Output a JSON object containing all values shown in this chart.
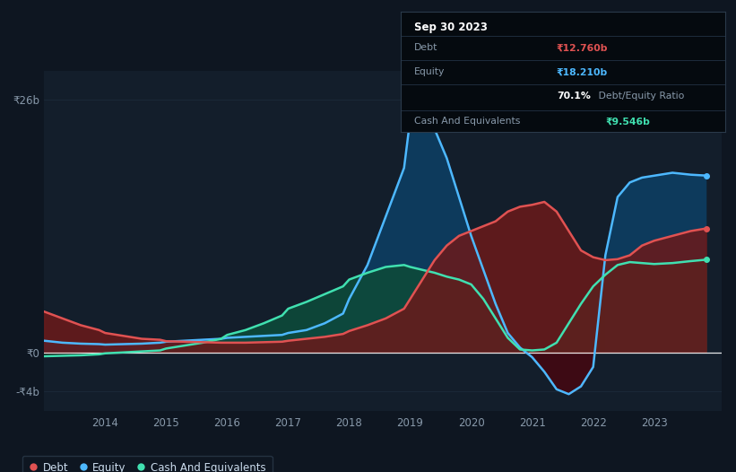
{
  "bg_color": "#0e1621",
  "plot_bg_color": "#131e2b",
  "title": "Sep 30 2023",
  "tooltip": {
    "debt": "₹12.760b",
    "equity": "₹18.210b",
    "ratio": "70.1%",
    "cash": "₹9.546b"
  },
  "ylabel_top": "₹26b",
  "ylabel_zero": "₹0",
  "ylabel_bottom": "-₹4b",
  "x_labels": [
    "2014",
    "2015",
    "2016",
    "2017",
    "2018",
    "2019",
    "2020",
    "2021",
    "2022",
    "2023"
  ],
  "years": [
    2013.0,
    2013.3,
    2013.6,
    2013.9,
    2014.0,
    2014.3,
    2014.6,
    2014.9,
    2015.0,
    2015.3,
    2015.6,
    2015.9,
    2016.0,
    2016.3,
    2016.6,
    2016.9,
    2017.0,
    2017.3,
    2017.6,
    2017.9,
    2018.0,
    2018.3,
    2018.6,
    2018.9,
    2019.0,
    2019.2,
    2019.4,
    2019.6,
    2019.8,
    2020.0,
    2020.2,
    2020.4,
    2020.6,
    2020.8,
    2021.0,
    2021.2,
    2021.4,
    2021.6,
    2021.8,
    2022.0,
    2022.2,
    2022.4,
    2022.6,
    2022.8,
    2023.0,
    2023.3,
    2023.6,
    2023.85
  ],
  "debt": [
    4.2,
    3.5,
    2.8,
    2.3,
    2.0,
    1.7,
    1.4,
    1.3,
    1.15,
    1.1,
    1.05,
    1.0,
    1.0,
    1.0,
    1.05,
    1.1,
    1.2,
    1.4,
    1.6,
    1.9,
    2.2,
    2.8,
    3.5,
    4.5,
    5.5,
    7.5,
    9.5,
    11.0,
    12.0,
    12.5,
    13.0,
    13.5,
    14.5,
    15.0,
    15.2,
    15.5,
    14.5,
    12.5,
    10.5,
    9.8,
    9.5,
    9.6,
    10.0,
    11.0,
    11.5,
    12.0,
    12.5,
    12.76
  ],
  "equity": [
    1.2,
    1.0,
    0.9,
    0.85,
    0.8,
    0.85,
    0.9,
    1.0,
    1.1,
    1.2,
    1.3,
    1.4,
    1.5,
    1.6,
    1.7,
    1.8,
    2.0,
    2.3,
    3.0,
    4.0,
    5.5,
    9.0,
    14.0,
    19.0,
    24.0,
    24.5,
    23.0,
    20.0,
    16.0,
    12.0,
    8.5,
    5.0,
    2.0,
    0.5,
    -0.5,
    -2.0,
    -3.8,
    -4.3,
    -3.5,
    -1.5,
    10.0,
    16.0,
    17.5,
    18.0,
    18.2,
    18.5,
    18.3,
    18.21
  ],
  "cash": [
    -0.4,
    -0.35,
    -0.3,
    -0.2,
    -0.1,
    0.0,
    0.1,
    0.2,
    0.4,
    0.7,
    1.0,
    1.4,
    1.8,
    2.3,
    3.0,
    3.8,
    4.5,
    5.2,
    6.0,
    6.8,
    7.5,
    8.2,
    8.8,
    9.0,
    8.8,
    8.5,
    8.2,
    7.8,
    7.5,
    7.0,
    5.5,
    3.5,
    1.5,
    0.3,
    0.2,
    0.3,
    1.0,
    3.0,
    5.0,
    6.8,
    8.0,
    9.0,
    9.3,
    9.2,
    9.1,
    9.2,
    9.4,
    9.546
  ],
  "debt_color": "#e05252",
  "equity_color": "#4db8ff",
  "cash_color": "#40e0b0",
  "debt_fill_pos": "#6b1a1a",
  "debt_fill_neg": "#3d0808",
  "equity_fill_pos": "#0d3a5c",
  "equity_fill_neg": "#3d0a14",
  "cash_fill_pos": "#0d4a3a",
  "cash_fill_neg": "#081a10",
  "ylim": [
    -6.0,
    29.0
  ],
  "xlim": [
    2013.0,
    2024.1
  ],
  "grid_color": "#1e2d3d",
  "legend": {
    "debt_label": "Debt",
    "equity_label": "Equity",
    "cash_label": "Cash And Equivalents"
  }
}
